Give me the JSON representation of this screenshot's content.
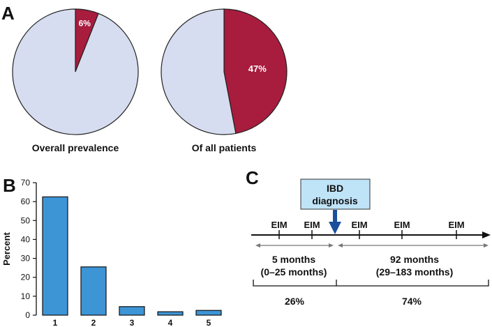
{
  "colors": {
    "highlight": "#a81c3e",
    "background_slice": "#d6ddf0",
    "bar": "#3d95d6",
    "callout_fill": "#bfe3f7",
    "arrow_blue": "#1a4f9c",
    "range_arrow": "#777777"
  },
  "panels": {
    "a": "A",
    "b": "B",
    "c": "C"
  },
  "chart_data": [
    {
      "type": "pie",
      "panel": "A",
      "xlabel": "Overall prevalence",
      "slices": [
        {
          "value": 6,
          "label": "6%",
          "color": "#a81c3e"
        },
        {
          "value": 94,
          "label": "",
          "color": "#d6ddf0"
        }
      ]
    },
    {
      "type": "pie",
      "panel": "A",
      "xlabel": "Of all patients",
      "slices": [
        {
          "value": 47,
          "label": "47%",
          "color": "#a81c3e"
        },
        {
          "value": 53,
          "label": "",
          "color": "#d6ddf0"
        }
      ]
    },
    {
      "type": "bar",
      "panel": "B",
      "categories": [
        "1",
        "2",
        "3",
        "4",
        "5"
      ],
      "values": [
        62.5,
        25.5,
        4.5,
        1.8,
        2.5
      ],
      "xlabel": "",
      "ylabel": "Percent",
      "ylim": [
        0,
        70
      ],
      "yticks": [
        "0",
        "10",
        "20",
        "30",
        "40",
        "50",
        "60",
        "70"
      ],
      "grid": false
    }
  ],
  "timeline": {
    "callout_line1": "IBD",
    "callout_line2": "diagnosis",
    "eim_label": "EIM",
    "eim_count": 5,
    "before_line1": "5 months",
    "before_line2": "(0–25 months)",
    "before_pct": "26%",
    "after_line1": "92 months",
    "after_line2": "(29–183 months)",
    "after_pct": "74%"
  }
}
